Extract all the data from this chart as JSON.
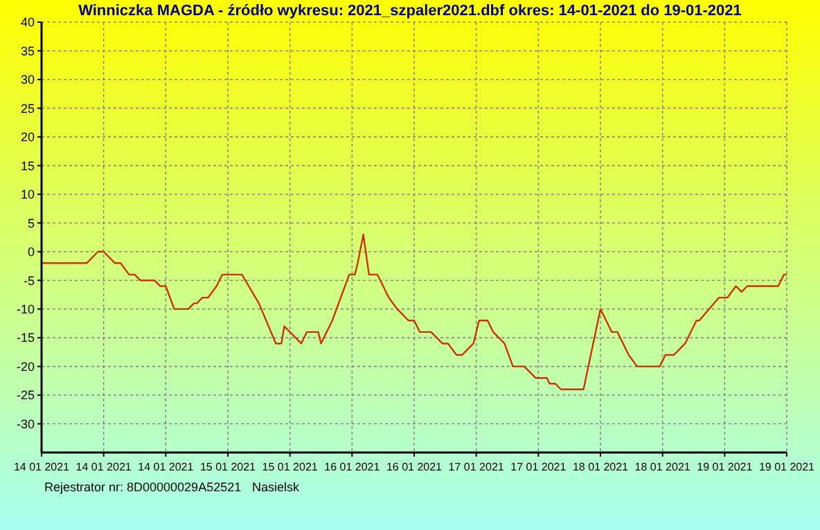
{
  "chart_data": {
    "type": "line",
    "title": "Winniczka  MAGDA  -  źródło wykresu:  2021_szpaler2021.dbf  okres: 14-01-2021  do  19-01-2021",
    "annotations": [
      "Rejestrator nr: 8D00000029A52521",
      "Nasielsk"
    ],
    "xlim": [
      "2021-01-14T00:00",
      "2021-01-19T12:00"
    ],
    "xticks": [
      {
        "value": "2021-01-14T00:00",
        "label": "14 01 2021"
      },
      {
        "value": "2021-01-14T11:00",
        "label": "14 01 2021"
      },
      {
        "value": "2021-01-14T22:00",
        "label": "14 01 2021"
      },
      {
        "value": "2021-01-15T09:00",
        "label": "15 01 2021"
      },
      {
        "value": "2021-01-15T20:00",
        "label": "15 01 2021"
      },
      {
        "value": "2021-01-16T07:00",
        "label": "16 01 2021"
      },
      {
        "value": "2021-01-16T18:00",
        "label": "16 01 2021"
      },
      {
        "value": "2021-01-17T05:00",
        "label": "17 01 2021"
      },
      {
        "value": "2021-01-17T16:00",
        "label": "17 01 2021"
      },
      {
        "value": "2021-01-18T03:00",
        "label": "18 01 2021"
      },
      {
        "value": "2021-01-18T14:00",
        "label": "18 01 2021"
      },
      {
        "value": "2021-01-19T01:00",
        "label": "19 01 2021"
      },
      {
        "value": "2021-01-19T12:00",
        "label": "19 01 2021"
      }
    ],
    "ylim": [
      -35,
      40
    ],
    "yticks": [
      -30,
      -25,
      -20,
      -15,
      -10,
      -5,
      0,
      5,
      10,
      15,
      20,
      25,
      30,
      35,
      40
    ],
    "grid": true,
    "marker": "none",
    "line_style": "solid",
    "x": [
      "2021-01-14T00:00",
      "2021-01-14T08:00",
      "2021-01-14T10:00",
      "2021-01-14T11:00",
      "2021-01-14T13:00",
      "2021-01-14T14:00",
      "2021-01-14T15:30",
      "2021-01-14T16:30",
      "2021-01-14T17:30",
      "2021-01-14T20:00",
      "2021-01-14T21:00",
      "2021-01-14T22:00",
      "2021-01-14T23:30",
      "2021-01-15T02:00",
      "2021-01-15T03:00",
      "2021-01-15T03:30",
      "2021-01-15T04:30",
      "2021-01-15T05:30",
      "2021-01-15T07:00",
      "2021-01-15T08:00",
      "2021-01-15T11:30",
      "2021-01-15T14:30",
      "2021-01-15T17:30",
      "2021-01-15T18:30",
      "2021-01-15T19:00",
      "2021-01-15T22:00",
      "2021-01-15T23:00",
      "2021-01-16T01:00",
      "2021-01-16T01:30",
      "2021-01-16T03:30",
      "2021-01-16T06:30",
      "2021-01-16T07:30",
      "2021-01-16T08:00",
      "2021-01-16T09:00",
      "2021-01-16T10:00",
      "2021-01-16T11:30",
      "2021-01-16T13:30",
      "2021-01-16T15:00",
      "2021-01-16T17:00",
      "2021-01-16T18:00",
      "2021-01-16T19:00",
      "2021-01-16T21:00",
      "2021-01-16T23:00",
      "2021-01-17T00:00",
      "2021-01-17T01:30",
      "2021-01-17T02:30",
      "2021-01-17T04:30",
      "2021-01-17T05:30",
      "2021-01-17T07:00",
      "2021-01-17T08:00",
      "2021-01-17T10:00",
      "2021-01-17T11:30",
      "2021-01-17T13:30",
      "2021-01-17T15:30",
      "2021-01-17T17:30",
      "2021-01-17T18:00",
      "2021-01-17T19:00",
      "2021-01-17T20:00",
      "2021-01-18T00:00",
      "2021-01-18T03:00",
      "2021-01-18T05:00",
      "2021-01-18T06:00",
      "2021-01-18T08:00",
      "2021-01-18T09:30",
      "2021-01-18T13:30",
      "2021-01-18T14:30",
      "2021-01-18T16:00",
      "2021-01-18T18:00",
      "2021-01-18T20:00",
      "2021-01-18T20:30",
      "2021-01-19T00:00",
      "2021-01-19T01:30",
      "2021-01-19T03:00",
      "2021-01-19T04:00",
      "2021-01-19T05:00",
      "2021-01-19T10:30",
      "2021-01-19T11:30",
      "2021-01-19T12:00"
    ],
    "series": [
      {
        "color": "#cc3300",
        "values": [
          -2,
          -2,
          0,
          0,
          -2,
          -2,
          -4,
          -4,
          -5,
          -5,
          -6,
          -6,
          -10,
          -10,
          -9,
          -9,
          -8,
          -8,
          -6,
          -4,
          -4,
          -9,
          -16,
          -16,
          -13,
          -16,
          -14,
          -14,
          -16,
          -12,
          -4,
          -4,
          -2,
          3,
          -4,
          -4,
          -8,
          -10,
          -12,
          -12,
          -14,
          -14,
          -16,
          -16,
          -18,
          -18,
          -16,
          -12,
          -12,
          -14,
          -16,
          -20,
          -20,
          -22,
          -22,
          -23,
          -23,
          -24,
          -24,
          -10,
          -14,
          -14,
          -18,
          -20,
          -20,
          -18,
          -18,
          -16,
          -12,
          -12,
          -8,
          -8,
          -6,
          -7,
          -6,
          -6,
          -4,
          -4
        ]
      }
    ]
  }
}
